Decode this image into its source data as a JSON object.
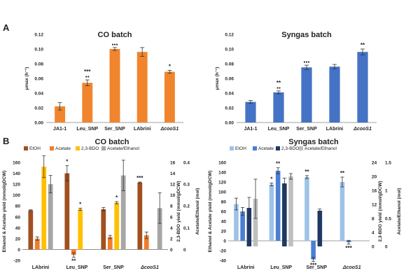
{
  "panel_labels": {
    "a": "A",
    "b": "B"
  },
  "colors": {
    "orange": "#f0852d",
    "blue": "#4472c4",
    "etoh_co": "#a0501e",
    "acetate_co": "#ef7d2d",
    "bdo_co": "#ffc000",
    "ratio": "#a6a6a6",
    "etoh_syn": "#9dc3e6",
    "acetate_syn": "#4a7fd1",
    "bdo_syn": "#1f3864",
    "ratio_syn": "#bfbfbf",
    "axis": "#7f7f7f"
  },
  "chart_data": [
    {
      "type": "bar",
      "panel": "A",
      "title": "CO batch",
      "ylabel": "μmax (h⁻¹)",
      "ylim": [
        0,
        0.12
      ],
      "yticks": [
        "0.00",
        "0.02",
        "0.04",
        "0.06",
        "0.08",
        "0.10",
        "0.12"
      ],
      "categories": [
        "JA1-1",
        "Leu_SNP",
        "Ser_SNP",
        "LAbrini",
        "ΔcooS1"
      ],
      "values": [
        0.022,
        0.054,
        0.1,
        0.096,
        0.069
      ],
      "errors": [
        0.005,
        0.004,
        0.002,
        0.006,
        0.002
      ],
      "annotations": [
        "",
        "***\n●●",
        "●●●",
        "",
        "*"
      ]
    },
    {
      "type": "bar",
      "panel": "A",
      "title": "Syngas batch",
      "ylabel": "μmax (h⁻¹)",
      "ylim": [
        0,
        0.12
      ],
      "yticks": [
        "0.00",
        "0.02",
        "0.04",
        "0.06",
        "0.08",
        "0.10",
        "0.12"
      ],
      "categories": [
        "JA1-1",
        "Leu_SNP",
        "Ser_SNP",
        "LAbrini",
        "ΔcooS1"
      ],
      "values": [
        0.028,
        0.041,
        0.075,
        0.076,
        0.096
      ],
      "errors": [
        0.002,
        0.002,
        0.003,
        0.003,
        0.004
      ],
      "annotations": [
        "",
        "**\n●●",
        "●●●",
        "",
        "**"
      ]
    },
    {
      "type": "bar",
      "panel": "B",
      "title": "CO batch",
      "ylabel": "Ethanol & Acetate yield (mmol/gDCW)",
      "y2label": "2,3-BDO yield (mmol/gDCW)",
      "y3label": "Acetate/Ethanol (mol)",
      "ylim": [
        -20,
        160
      ],
      "y2lim": [
        -2,
        16
      ],
      "y3lim": [
        -0.05,
        0.4
      ],
      "yticks": [
        "-20",
        "0",
        "20",
        "40",
        "60",
        "80",
        "100",
        "120",
        "140",
        "160"
      ],
      "y2ticks": [
        "0",
        "2",
        "4",
        "6",
        "8",
        "10",
        "12",
        "14",
        "16"
      ],
      "y3ticks": [
        "0",
        "0.1",
        "0.2",
        "0.3",
        "0.4"
      ],
      "legend": [
        "EtOH",
        "Acetate",
        "2,3-BDO",
        "Acetate/Ethanol"
      ],
      "legend_position": "top",
      "categories": [
        "LAbrini",
        "Leu_SNP",
        "Ser_SNP",
        "ΔcooS1"
      ],
      "series": [
        {
          "name": "EtOH",
          "axis": "left",
          "values": [
            72,
            140,
            74,
            123
          ],
          "errors": [
            1,
            14,
            3,
            1
          ]
        },
        {
          "name": "Acetate",
          "axis": "left",
          "values": [
            20,
            -10,
            23,
            26
          ],
          "errors": [
            3,
            4,
            3,
            6
          ]
        },
        {
          "name": "2,3-BDO",
          "axis": "right",
          "values": [
            15.2,
            7.4,
            8.6,
            0
          ],
          "errors": [
            2.0,
            0.2,
            0.2,
            0
          ]
        },
        {
          "name": "Acetate/Ethanol",
          "axis": "ratio",
          "values": [
            0.3,
            null,
            0.34,
            0.19
          ],
          "errors": [
            0.04,
            null,
            0.07,
            0.07
          ]
        }
      ],
      "annotations": [
        {
          "category": "Leu_SNP",
          "series": "EtOH",
          "text": "*"
        },
        {
          "category": "Leu_SNP",
          "series": "Acetate",
          "text": "**"
        },
        {
          "category": "Leu_SNP",
          "series": "2,3-BDO",
          "text": "*"
        },
        {
          "category": "Ser_SNP",
          "series": "2,3-BDO",
          "text": "*"
        },
        {
          "category": "ΔcooS1",
          "series": "EtOH",
          "text": "***"
        }
      ]
    },
    {
      "type": "bar",
      "panel": "B",
      "title": "Syngas batch",
      "ylabel": "Ethanol & Acetate yield (mmol/gDCW)",
      "y2label": "2,3-BDO yield (mmol/gDCW)",
      "y3label": "Acetate/Ethanol (mol)",
      "ylim": [
        -40,
        160
      ],
      "y2lim": [
        -4,
        24
      ],
      "y3lim": [
        -0.25,
        1.5
      ],
      "yticks": [
        "-40",
        "-20",
        "0",
        "20",
        "40",
        "60",
        "80",
        "100",
        "120",
        "140",
        "160"
      ],
      "y2ticks": [
        "0",
        "4",
        "8",
        "12",
        "16",
        "20",
        "24"
      ],
      "y3ticks": [
        "0",
        "0.5",
        "1",
        "1.5"
      ],
      "legend": [
        "EtOH",
        "Acetate",
        "2,3-BDO",
        "Acetate/Ethanol"
      ],
      "legend_position": "top",
      "categories": [
        "LAbrini",
        "Leu_SNP",
        "Ser_SNP",
        "ΔcooS1"
      ],
      "series": [
        {
          "name": "EtOH",
          "axis": "left",
          "values": [
            75,
            115,
            130,
            120
          ],
          "errors": [
            12,
            3,
            3,
            10
          ]
        },
        {
          "name": "Acetate",
          "axis": "left",
          "values": [
            60,
            143,
            -38,
            -3
          ],
          "errors": [
            8,
            6,
            4,
            4
          ]
        },
        {
          "name": "2,3-BDO",
          "axis": "right",
          "values": [
            11.0,
            18.0,
            10.2,
            0
          ],
          "errors": [
            3.0,
            1.5,
            0.5,
            0
          ]
        },
        {
          "name": "Acetate/Ethanol",
          "axis": "ratio",
          "values": [
            0.85,
            1.25,
            null,
            null
          ],
          "errors": [
            0.35,
            0.05,
            null,
            null
          ]
        }
      ],
      "annotations": [
        {
          "category": "Leu_SNP",
          "series": "EtOH",
          "text": "*"
        },
        {
          "category": "Leu_SNP",
          "series": "Acetate",
          "text": "**"
        },
        {
          "category": "Ser_SNP",
          "series": "EtOH",
          "text": "**"
        },
        {
          "category": "Ser_SNP",
          "series": "Acetate",
          "text": "***"
        },
        {
          "category": "ΔcooS1",
          "series": "EtOH",
          "text": "**"
        },
        {
          "category": "ΔcooS1",
          "series": "Acetate",
          "text": "***"
        }
      ]
    }
  ]
}
